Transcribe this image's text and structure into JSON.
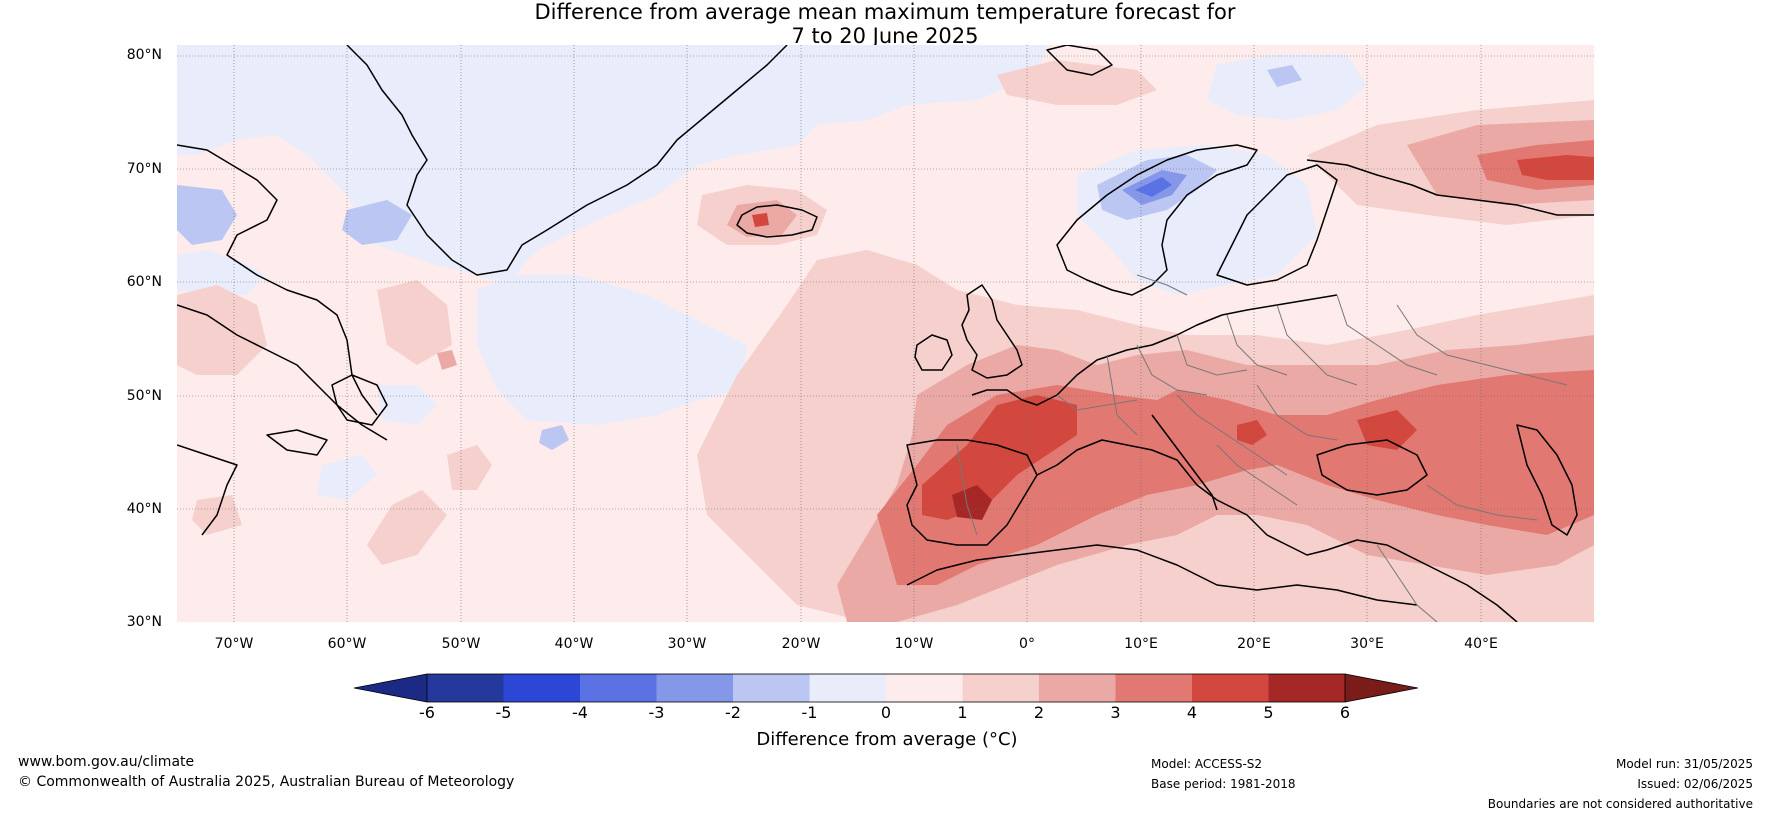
{
  "title": {
    "line1": "Difference from average mean maximum temperature forecast for",
    "line2": "7 to 20 June 2025"
  },
  "axes": {
    "lat_labels": [
      "80°N",
      "70°N",
      "60°N",
      "50°N",
      "40°N",
      "30°N"
    ],
    "lon_labels": [
      "70°W",
      "60°W",
      "50°W",
      "40°W",
      "30°W",
      "20°W",
      "10°W",
      "0°",
      "10°E",
      "20°E",
      "30°E",
      "40°E"
    ]
  },
  "colorbar": {
    "title": "Difference from average (°C)",
    "ticks": [
      "-6",
      "-5",
      "-4",
      "-3",
      "-2",
      "-1",
      "0",
      "1",
      "2",
      "3",
      "4",
      "5",
      "6"
    ],
    "colors": [
      "#25389c",
      "#2c47d6",
      "#5a72e3",
      "#8597e8",
      "#bcc6f2",
      "#e8ecfb",
      "#fdeceb",
      "#f5d0cd",
      "#eba9a5",
      "#e27872",
      "#d2473e",
      "#a52826"
    ],
    "under_color": "#1c2a85",
    "over_color": "#7a1c1a"
  },
  "footer": {
    "url": "www.bom.gov.au/climate",
    "copyright": "© Commonwealth of Australia 2025, Australian Bureau of Meteorology",
    "model": "Model: ACCESS-S2",
    "base_period": "Base period: 1981-2018",
    "model_run": "Model run: 31/05/2025",
    "issued": "Issued: 02/06/2025",
    "disclaimer": "Boundaries are not considered authoritative"
  }
}
